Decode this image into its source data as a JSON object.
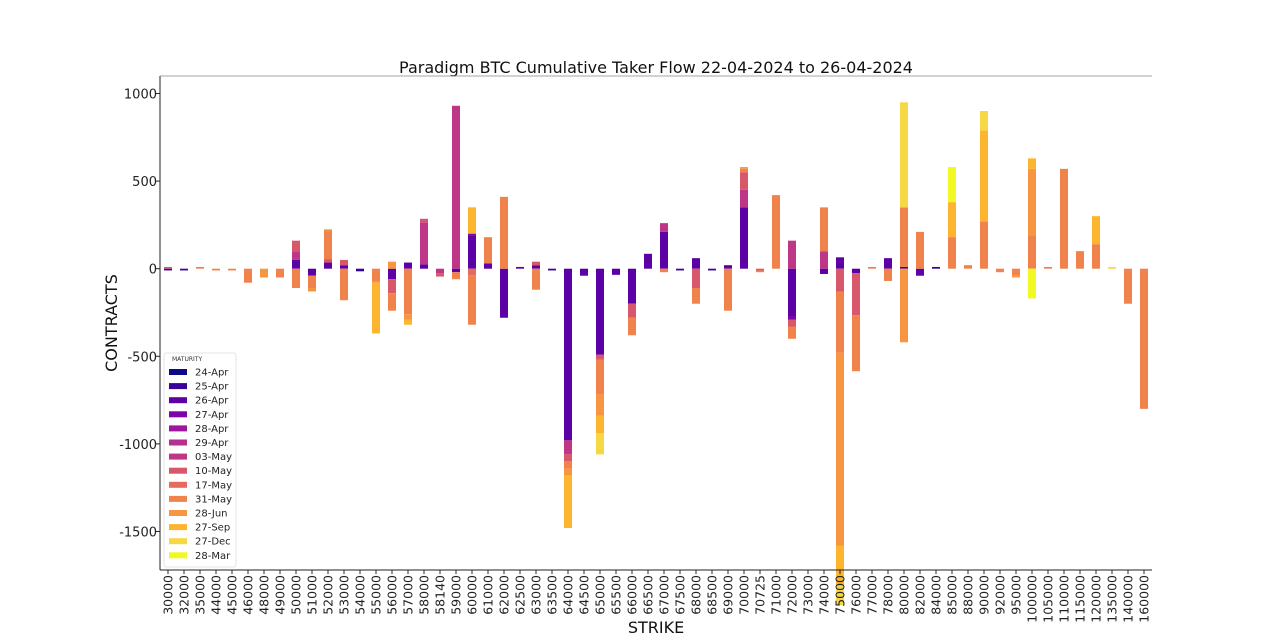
{
  "chart_data": {
    "type": "bar",
    "stacked": true,
    "title": "Paradigm BTC Cumulative Taker Flow 22-04-2024 to 26-04-2024",
    "xlabel": "STRIKE",
    "ylabel": "CONTRACTS",
    "ylim": [
      -1720,
      1100
    ],
    "yticks": [
      1000,
      500,
      0,
      -500,
      -1000,
      -1500
    ],
    "grid": false,
    "legend_title": "MATURITY",
    "legend_position": "lower-left",
    "categories": [
      "30000",
      "32000",
      "35000",
      "44000",
      "45000",
      "46000",
      "48000",
      "49000",
      "50000",
      "51000",
      "52000",
      "53000",
      "54000",
      "55000",
      "56000",
      "57000",
      "58000",
      "58140",
      "59000",
      "60000",
      "61000",
      "62000",
      "62500",
      "63000",
      "63500",
      "64000",
      "64500",
      "65000",
      "65500",
      "66000",
      "66500",
      "67000",
      "67500",
      "68000",
      "68500",
      "69000",
      "70000",
      "70725",
      "71000",
      "72000",
      "73000",
      "74000",
      "75000",
      "76000",
      "77000",
      "78000",
      "80000",
      "82000",
      "84000",
      "85000",
      "88000",
      "90000",
      "92000",
      "95000",
      "100000",
      "105000",
      "110000",
      "115000",
      "120000",
      "135000",
      "140000",
      "160000"
    ],
    "series": [
      {
        "name": "24-Apr",
        "color": "#0d0887",
        "values": [
          0,
          0,
          0,
          0,
          0,
          0,
          0,
          0,
          0,
          0,
          0,
          0,
          0,
          0,
          0,
          0,
          0,
          0,
          0,
          0,
          0,
          0,
          0,
          0,
          0,
          0,
          0,
          0,
          0,
          0,
          0,
          0,
          0,
          0,
          0,
          0,
          0,
          0,
          0,
          0,
          0,
          0,
          0,
          0,
          0,
          0,
          0,
          0,
          0,
          0,
          0,
          0,
          0,
          0,
          0,
          0,
          0,
          0,
          0,
          0,
          0,
          0
        ]
      },
      {
        "name": "25-Apr",
        "color": "#3a049a",
        "values": [
          -10,
          -10,
          0,
          0,
          0,
          0,
          0,
          0,
          0,
          0,
          0,
          0,
          -15,
          0,
          0,
          0,
          0,
          0,
          0,
          0,
          0,
          0,
          0,
          0,
          -10,
          0,
          0,
          0,
          0,
          0,
          0,
          0,
          -10,
          0,
          -10,
          0,
          0,
          0,
          0,
          0,
          0,
          0,
          0,
          0,
          0,
          0,
          10,
          0,
          10,
          0,
          0,
          0,
          0,
          0,
          0,
          0,
          0,
          0,
          0,
          0,
          0,
          0
        ]
      },
      {
        "name": "26-Apr",
        "color": "#5c01a6",
        "values": [
          0,
          0,
          0,
          0,
          0,
          0,
          0,
          0,
          50,
          -40,
          35,
          20,
          0,
          0,
          -60,
          35,
          25,
          0,
          -20,
          190,
          30,
          -280,
          10,
          20,
          0,
          -980,
          -40,
          -490,
          -35,
          -200,
          85,
          210,
          0,
          60,
          0,
          20,
          350,
          0,
          0,
          -270,
          0,
          -30,
          65,
          -25,
          0,
          60,
          0,
          -40,
          0,
          0,
          0,
          0,
          0,
          0,
          0,
          0,
          0,
          0,
          0,
          0,
          0,
          0
        ]
      },
      {
        "name": "27-Apr",
        "color": "#7e03a8",
        "values": [
          0,
          0,
          0,
          0,
          0,
          0,
          0,
          0,
          0,
          0,
          0,
          0,
          0,
          0,
          0,
          0,
          0,
          0,
          0,
          10,
          0,
          0,
          0,
          0,
          0,
          0,
          0,
          0,
          0,
          0,
          0,
          0,
          0,
          0,
          0,
          0,
          0,
          0,
          0,
          -20,
          0,
          0,
          0,
          0,
          0,
          0,
          0,
          0,
          0,
          0,
          0,
          0,
          0,
          0,
          0,
          0,
          0,
          0,
          0,
          0,
          0,
          0
        ]
      },
      {
        "name": "28-Apr",
        "color": "#9c179e",
        "values": [
          0,
          0,
          0,
          0,
          0,
          0,
          0,
          0,
          0,
          0,
          0,
          0,
          0,
          0,
          0,
          0,
          0,
          0,
          0,
          0,
          0,
          0,
          0,
          0,
          0,
          0,
          0,
          0,
          0,
          0,
          0,
          0,
          0,
          0,
          0,
          0,
          0,
          0,
          0,
          0,
          0,
          0,
          0,
          0,
          0,
          0,
          0,
          0,
          0,
          0,
          0,
          0,
          0,
          0,
          0,
          0,
          0,
          0,
          0,
          0,
          0,
          0
        ]
      },
      {
        "name": "29-Apr",
        "color": "#b52f8c",
        "values": [
          0,
          0,
          0,
          0,
          0,
          0,
          0,
          0,
          0,
          0,
          0,
          0,
          0,
          0,
          0,
          0,
          0,
          0,
          0,
          0,
          0,
          0,
          0,
          0,
          0,
          0,
          0,
          0,
          0,
          0,
          0,
          0,
          0,
          0,
          0,
          0,
          0,
          0,
          0,
          0,
          0,
          0,
          0,
          0,
          0,
          0,
          0,
          0,
          0,
          0,
          0,
          0,
          0,
          0,
          0,
          0,
          0,
          0,
          0,
          0,
          0,
          0
        ]
      },
      {
        "name": "03-May",
        "color": "#bd3786",
        "values": [
          0,
          0,
          0,
          0,
          0,
          0,
          0,
          0,
          50,
          0,
          0,
          0,
          0,
          0,
          0,
          0,
          240,
          -25,
          930,
          0,
          0,
          0,
          0,
          0,
          0,
          -80,
          0,
          0,
          0,
          0,
          0,
          50,
          0,
          0,
          0,
          0,
          100,
          0,
          0,
          160,
          0,
          100,
          0,
          0,
          0,
          0,
          0,
          0,
          0,
          0,
          0,
          0,
          0,
          0,
          0,
          0,
          0,
          0,
          0,
          0,
          0,
          0
        ]
      },
      {
        "name": "10-May",
        "color": "#d8576b",
        "values": [
          10,
          0,
          0,
          0,
          0,
          0,
          0,
          0,
          60,
          0,
          20,
          30,
          0,
          0,
          -80,
          0,
          20,
          -20,
          0,
          0,
          0,
          0,
          0,
          20,
          0,
          -40,
          0,
          -30,
          0,
          -80,
          0,
          0,
          0,
          -110,
          0,
          0,
          100,
          -10,
          0,
          -40,
          0,
          0,
          -130,
          -240,
          0,
          0,
          0,
          0,
          0,
          0,
          0,
          0,
          0,
          0,
          0,
          0,
          0,
          0,
          0,
          0,
          0,
          0
        ]
      },
      {
        "name": "17-May",
        "color": "#e56b5d",
        "values": [
          0,
          0,
          0,
          0,
          0,
          0,
          0,
          0,
          0,
          0,
          0,
          0,
          0,
          0,
          0,
          0,
          0,
          0,
          0,
          -40,
          0,
          0,
          0,
          0,
          0,
          0,
          0,
          0,
          0,
          0,
          0,
          0,
          0,
          0,
          0,
          0,
          0,
          0,
          0,
          0,
          0,
          0,
          0,
          0,
          0,
          0,
          0,
          0,
          0,
          0,
          0,
          0,
          0,
          0,
          0,
          0,
          0,
          0,
          0,
          0,
          0,
          0
        ]
      },
      {
        "name": "31-May",
        "color": "#f0834b",
        "values": [
          0,
          0,
          10,
          -10,
          -10,
          -80,
          0,
          -50,
          -110,
          -70,
          160,
          -180,
          0,
          -70,
          -100,
          -260,
          0,
          0,
          -40,
          -280,
          150,
          410,
          0,
          -120,
          0,
          -40,
          0,
          -200,
          0,
          -100,
          0,
          -20,
          0,
          -90,
          0,
          -240,
          20,
          -10,
          420,
          -70,
          0,
          250,
          -350,
          -320,
          10,
          -70,
          340,
          210,
          0,
          180,
          20,
          270,
          -20,
          -40,
          190,
          10,
          570,
          100,
          140,
          0,
          -200,
          -800
        ]
      },
      {
        "name": "28-Jun",
        "color": "#f89540",
        "values": [
          0,
          0,
          0,
          0,
          0,
          0,
          -50,
          0,
          0,
          -20,
          10,
          0,
          0,
          -10,
          40,
          -30,
          0,
          0,
          0,
          0,
          0,
          0,
          0,
          0,
          0,
          -40,
          0,
          -120,
          0,
          0,
          0,
          0,
          0,
          0,
          0,
          0,
          10,
          0,
          0,
          0,
          0,
          0,
          -1100,
          0,
          0,
          0,
          -420,
          0,
          0,
          0,
          0,
          0,
          0,
          -10,
          380,
          0,
          0,
          0,
          0,
          0,
          0,
          0
        ]
      },
      {
        "name": "27-Sep",
        "color": "#fdb42f",
        "values": [
          0,
          0,
          0,
          0,
          0,
          0,
          0,
          0,
          0,
          0,
          0,
          0,
          0,
          -290,
          0,
          -30,
          0,
          0,
          0,
          150,
          0,
          0,
          0,
          0,
          0,
          -300,
          0,
          -100,
          0,
          0,
          0,
          0,
          0,
          0,
          0,
          0,
          0,
          0,
          0,
          0,
          0,
          0,
          -230,
          0,
          0,
          0,
          0,
          0,
          0,
          200,
          0,
          520,
          0,
          0,
          60,
          0,
          0,
          0,
          160,
          0,
          0,
          0
        ]
      },
      {
        "name": "27-Dec",
        "color": "#f6d746",
        "values": [
          0,
          0,
          0,
          0,
          0,
          0,
          0,
          0,
          0,
          0,
          0,
          0,
          0,
          0,
          0,
          0,
          0,
          0,
          0,
          0,
          0,
          0,
          0,
          0,
          0,
          0,
          0,
          -120,
          0,
          0,
          0,
          0,
          0,
          0,
          0,
          0,
          0,
          0,
          0,
          0,
          0,
          0,
          -110,
          0,
          0,
          0,
          600,
          0,
          0,
          0,
          0,
          110,
          0,
          0,
          0,
          0,
          0,
          0,
          0,
          10,
          0,
          0
        ]
      },
      {
        "name": "28-Mar",
        "color": "#f0f921",
        "values": [
          0,
          0,
          0,
          0,
          0,
          0,
          0,
          0,
          0,
          0,
          0,
          0,
          0,
          0,
          0,
          0,
          0,
          0,
          0,
          0,
          0,
          0,
          0,
          0,
          0,
          0,
          0,
          0,
          0,
          0,
          0,
          0,
          0,
          0,
          0,
          0,
          0,
          0,
          0,
          0,
          0,
          0,
          0,
          0,
          0,
          0,
          0,
          0,
          0,
          200,
          0,
          0,
          0,
          0,
          -170,
          0,
          0,
          0,
          0,
          0,
          0,
          0
        ]
      }
    ]
  }
}
